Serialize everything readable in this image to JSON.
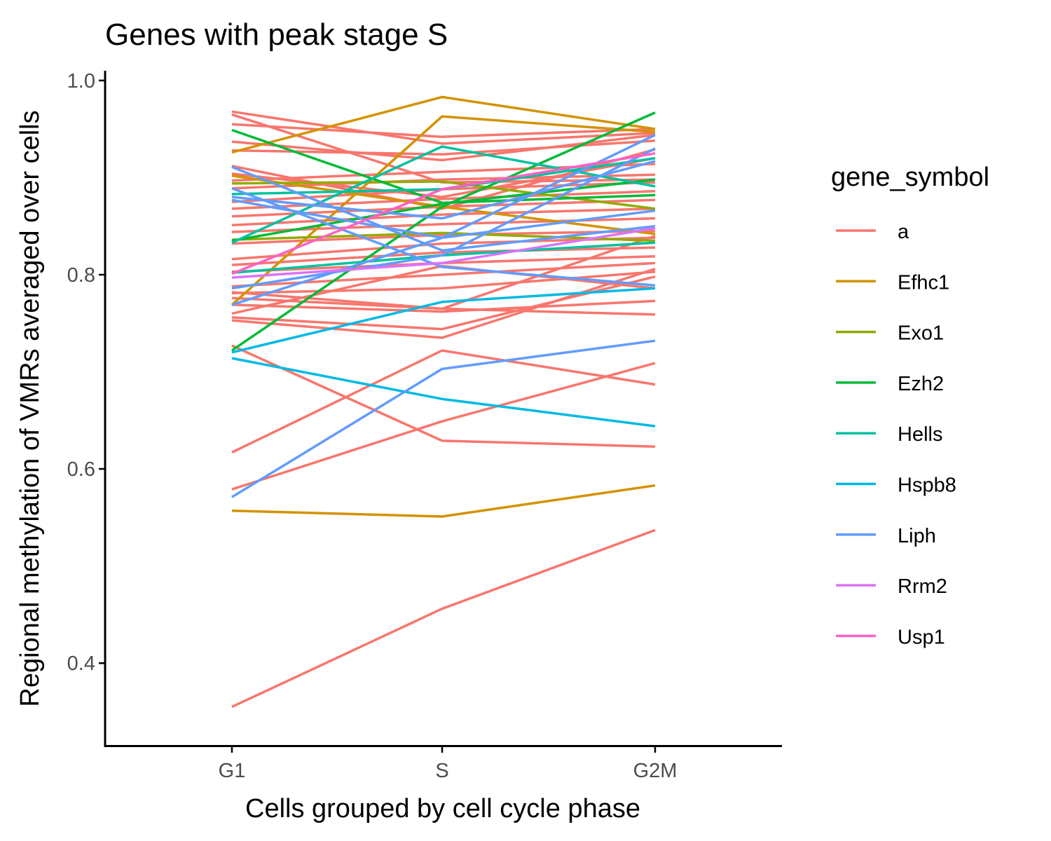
{
  "chart_data": {
    "type": "line",
    "title": "Genes with peak stage S",
    "xlabel": "Cells grouped by cell cycle phase",
    "ylabel": "Regional methylation of VMRs averaged over cells",
    "categories": [
      "G1",
      "S",
      "G2M"
    ],
    "ylim": [
      0.315,
      1.01
    ],
    "yticks": [
      0.4,
      0.6,
      0.8,
      1.0
    ],
    "ytick_labels": [
      "0.4",
      "0.6",
      "0.8",
      "1.0"
    ],
    "grid": false,
    "legend": {
      "title": "gene_symbol",
      "position": "right",
      "entries": [
        {
          "label": "a",
          "color": "#F8766D"
        },
        {
          "label": "Efhc1",
          "color": "#D39200"
        },
        {
          "label": "Exo1",
          "color": "#93AA00"
        },
        {
          "label": "Ezh2",
          "color": "#00BA38"
        },
        {
          "label": "Hells",
          "color": "#00C19F"
        },
        {
          "label": "Hspb8",
          "color": "#00B9E3"
        },
        {
          "label": "Liph",
          "color": "#619CFF"
        },
        {
          "label": "Rrm2",
          "color": "#DB72FB"
        },
        {
          "label": "Usp1",
          "color": "#FF61C3"
        }
      ]
    },
    "series": [
      {
        "group": "a",
        "values": [
          0.355,
          0.456,
          0.537
        ]
      },
      {
        "group": "a",
        "values": [
          0.579,
          0.649,
          0.709
        ]
      },
      {
        "group": "a",
        "values": [
          0.617,
          0.722,
          0.687
        ]
      },
      {
        "group": "a",
        "values": [
          0.727,
          0.629,
          0.623
        ]
      },
      {
        "group": "a",
        "values": [
          0.753,
          0.735,
          0.806
        ]
      },
      {
        "group": "a",
        "values": [
          0.756,
          0.744,
          0.798
        ]
      },
      {
        "group": "a",
        "values": [
          0.769,
          0.762,
          0.773
        ]
      },
      {
        "group": "a",
        "values": [
          0.776,
          0.765,
          0.759
        ]
      },
      {
        "group": "a",
        "values": [
          0.781,
          0.786,
          0.803
        ]
      },
      {
        "group": "a",
        "values": [
          0.788,
          0.8,
          0.812
        ]
      },
      {
        "group": "a",
        "values": [
          0.803,
          0.812,
          0.819
        ]
      },
      {
        "group": "a",
        "values": [
          0.81,
          0.823,
          0.828
        ]
      },
      {
        "group": "a",
        "values": [
          0.816,
          0.832,
          0.838
        ]
      },
      {
        "group": "a",
        "values": [
          0.832,
          0.841,
          0.845
        ]
      },
      {
        "group": "a",
        "values": [
          0.844,
          0.852,
          0.858
        ]
      },
      {
        "group": "a",
        "values": [
          0.851,
          0.862,
          0.868
        ]
      },
      {
        "group": "a",
        "values": [
          0.86,
          0.87,
          0.877
        ]
      },
      {
        "group": "a",
        "values": [
          0.868,
          0.878,
          0.886
        ]
      },
      {
        "group": "a",
        "values": [
          0.875,
          0.888,
          0.895
        ]
      },
      {
        "group": "a",
        "values": [
          0.889,
          0.898,
          0.903
        ]
      },
      {
        "group": "a",
        "values": [
          0.897,
          0.906,
          0.914
        ]
      },
      {
        "group": "a",
        "values": [
          0.904,
          0.88,
          0.92
        ]
      },
      {
        "group": "a",
        "values": [
          0.912,
          0.868,
          0.929
        ]
      },
      {
        "group": "a",
        "values": [
          0.928,
          0.924,
          0.938
        ]
      },
      {
        "group": "a",
        "values": [
          0.937,
          0.918,
          0.944
        ]
      },
      {
        "group": "a",
        "values": [
          0.955,
          0.942,
          0.95
        ]
      },
      {
        "group": "a",
        "values": [
          0.968,
          0.935,
          0.946
        ]
      },
      {
        "group": "a",
        "values": [
          0.965,
          0.895,
          0.898
        ]
      },
      {
        "group": "a",
        "values": [
          0.782,
          0.765,
          0.84
        ]
      },
      {
        "group": "a",
        "values": [
          0.76,
          0.809,
          0.786
        ]
      },
      {
        "group": "Efhc1",
        "values": [
          0.557,
          0.551,
          0.583
        ]
      },
      {
        "group": "Efhc1",
        "values": [
          0.769,
          0.963,
          0.947
        ]
      },
      {
        "group": "Efhc1",
        "values": [
          0.926,
          0.983,
          0.95
        ]
      },
      {
        "group": "Efhc1",
        "values": [
          0.902,
          0.87,
          0.842
        ]
      },
      {
        "group": "Exo1",
        "values": [
          0.894,
          0.896,
          0.868
        ]
      },
      {
        "group": "Exo1",
        "values": [
          0.836,
          0.843,
          0.835
        ]
      },
      {
        "group": "Ezh2",
        "values": [
          0.722,
          0.87,
          0.967
        ]
      },
      {
        "group": "Ezh2",
        "values": [
          0.949,
          0.874,
          0.882
        ]
      },
      {
        "group": "Ezh2",
        "values": [
          0.835,
          0.873,
          0.898
        ]
      },
      {
        "group": "Hells",
        "values": [
          0.833,
          0.932,
          0.891
        ]
      },
      {
        "group": "Hells",
        "values": [
          0.883,
          0.888,
          0.92
        ]
      },
      {
        "group": "Hells",
        "values": [
          0.802,
          0.82,
          0.833
        ]
      },
      {
        "group": "Hspb8",
        "values": [
          0.714,
          0.672,
          0.644
        ]
      },
      {
        "group": "Hspb8",
        "values": [
          0.72,
          0.772,
          0.786
        ]
      },
      {
        "group": "Liph",
        "values": [
          0.571,
          0.703,
          0.732
        ]
      },
      {
        "group": "Liph",
        "values": [
          0.911,
          0.825,
          0.85
        ]
      },
      {
        "group": "Liph",
        "values": [
          0.889,
          0.808,
          0.789
        ]
      },
      {
        "group": "Liph",
        "values": [
          0.877,
          0.838,
          0.944
        ]
      },
      {
        "group": "Liph",
        "values": [
          0.769,
          0.838,
          0.866
        ]
      },
      {
        "group": "Liph",
        "values": [
          0.786,
          0.82,
          0.93
        ]
      },
      {
        "group": "Liph",
        "values": [
          0.88,
          0.858,
          0.917
        ]
      },
      {
        "group": "Rrm2",
        "values": [
          0.797,
          0.812,
          0.848
        ]
      },
      {
        "group": "Usp1",
        "values": [
          0.801,
          0.888,
          0.925
        ]
      }
    ]
  }
}
